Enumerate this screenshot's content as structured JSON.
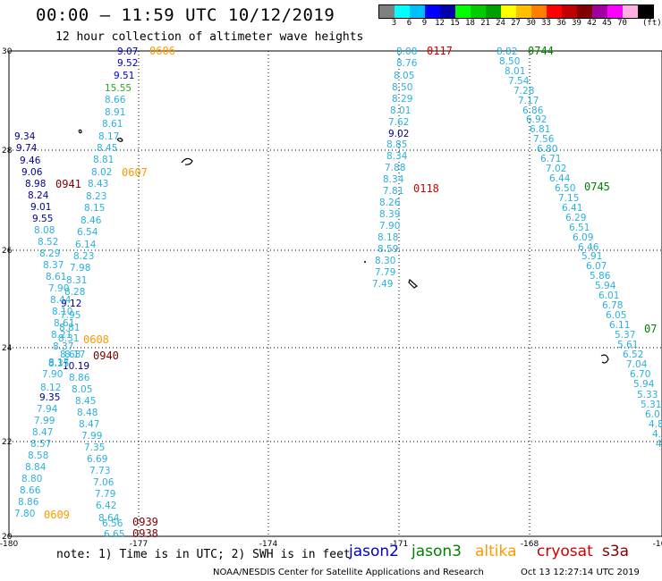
{
  "header": {
    "title": "00:00 – 11:59 UTC 10/12/2019",
    "subtitle": "12 hour collection of altimeter wave heights"
  },
  "colorbar": {
    "colors": [
      "#808080",
      "#00ffff",
      "#00bfff",
      "#0000ff",
      "#0000aa",
      "#00ff00",
      "#00cc00",
      "#00a000",
      "#ffff00",
      "#ffc000",
      "#ff8000",
      "#ff0000",
      "#c00000",
      "#800000",
      "#a000a0",
      "#ff00ff",
      "#ffb0e0",
      "#000000"
    ],
    "labels": [
      "3",
      "6",
      "9",
      "12",
      "15",
      "18",
      "21",
      "24",
      "27",
      "30",
      "33",
      "36",
      "39",
      "42",
      "45",
      "70"
    ],
    "unit": "(ft)"
  },
  "map": {
    "x_ticks": [
      "-180",
      "-177",
      "-174",
      "-171",
      "-168",
      "-16"
    ],
    "y_ticks": [
      "30",
      "28",
      "26",
      "24",
      "22",
      "20"
    ]
  },
  "satellite_colors": {
    "jason2": "#0000c8",
    "jason3": "#008000",
    "altika": "#ff9900",
    "cryosat": "#cc0000",
    "s3a": "#800000",
    "swh_light": "#2ab0e0",
    "swh_dark": "#000090",
    "swh_green": "#22aa22"
  },
  "time_labels": [
    {
      "text": "0606",
      "sat": "altika"
    },
    {
      "text": "0607",
      "sat": "altika"
    },
    {
      "text": "0608",
      "sat": "altika"
    },
    {
      "text": "0609",
      "sat": "altika"
    },
    {
      "text": "0941",
      "sat": "s3a"
    },
    {
      "text": "0940",
      "sat": "s3a"
    },
    {
      "text": "0939",
      "sat": "s3a"
    },
    {
      "text": "0938",
      "sat": "s3a"
    },
    {
      "text": "0117",
      "sat": "cryosat"
    },
    {
      "text": "0118",
      "sat": "cryosat"
    },
    {
      "text": "0744",
      "sat": "jason3"
    },
    {
      "text": "0745",
      "sat": "jason3"
    },
    {
      "text": "07",
      "sat": "jason3"
    }
  ],
  "tracks": {
    "altika": [
      "9.07",
      "9.52",
      "9.51",
      "15.55",
      "8.66",
      "8.91",
      "8.61",
      "8.17",
      "8.45",
      "8.81",
      "8.02",
      "8.43",
      "8.23",
      "8.15",
      "8.46",
      "6.54",
      "6.14",
      "8.23",
      "7.98",
      "8.31",
      "8.28",
      "9.12",
      "7.95",
      "8.81",
      "8.31",
      "8.17",
      "8.68",
      "10.19",
      "8.86",
      "8.05",
      "8.45",
      "8.48",
      "8.47",
      "7.99",
      "7.35",
      "6.69",
      "7.73",
      "7.06",
      "7.79",
      "6.42",
      "8.64",
      "6.56",
      "6.65"
    ],
    "s3a": [
      "9.34",
      "9.74",
      "9.46",
      "9.06",
      "8.98",
      "8.24",
      "9.01",
      "9.55",
      "8.08",
      "8.52",
      "8.29",
      "8.37",
      "8.61",
      "7.90",
      "8.44",
      "8.10",
      "8.61",
      "8.21",
      "8.37",
      "8.17",
      "8.35",
      "7.90",
      "8.12",
      "9.35",
      "7.94",
      "7.99",
      "8.47",
      "8.57",
      "8.58",
      "8.84",
      "8.80",
      "8.66",
      "8.86",
      "7.80"
    ],
    "cryosat": [
      "8.08",
      "8.76",
      "8.05",
      "8.50",
      "8.29",
      "8.01",
      "7.62",
      "9.02",
      "8.85",
      "8.34",
      "7.88",
      "8.34",
      "7.81",
      "8.26",
      "8.39",
      "7.90",
      "8.18",
      "8.59",
      "8.30",
      "7.79",
      "7.49"
    ],
    "jason3": [
      "8.82",
      "8.50",
      "8.01",
      "7.54",
      "7.28",
      "7.17",
      "6.86",
      "6.92",
      "6.81",
      "7.56",
      "6.80",
      "6.71",
      "7.02",
      "6.44",
      "6.50",
      "7.15",
      "6.41",
      "6.29",
      "6.51",
      "6.09",
      "6.46",
      "5.91",
      "6.07",
      "5.86",
      "5.94",
      "6.01",
      "6.78",
      "6.05",
      "6.11",
      "5.37",
      "5.61",
      "6.52",
      "7.04",
      "6.70",
      "5.94",
      "5.33",
      "5.31",
      "6.0",
      "4.8",
      "4.",
      "4"
    ]
  },
  "note": "note: 1) Time is in UTC; 2) SWH is in feet",
  "legend": {
    "jason2": "jason2",
    "jason3": "jason3",
    "altika": "altika",
    "cryosat": "cryosat",
    "s3a": "s3a"
  },
  "footer": {
    "credit": "NOAA/NESDIS Center for Satellite Applications and Research",
    "timestamp": "Oct 13 12:27:14 UTC 2019"
  }
}
